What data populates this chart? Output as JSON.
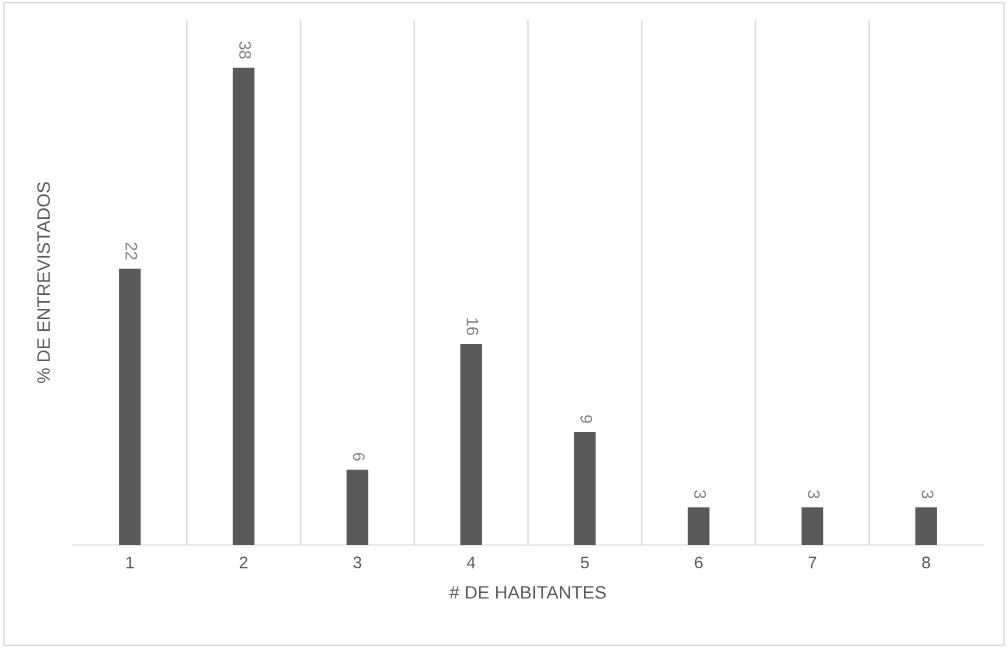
{
  "chart_data": {
    "type": "bar",
    "xlabel": "# DE HABITANTES",
    "ylabel": "% DE ENTREVISTADOS",
    "categories": [
      "1",
      "2",
      "3",
      "4",
      "5",
      "6",
      "7",
      "8"
    ],
    "values": [
      22,
      38,
      6,
      16,
      9,
      3,
      3,
      3
    ],
    "color": "#595959",
    "data_labels": true,
    "grid": "x"
  }
}
